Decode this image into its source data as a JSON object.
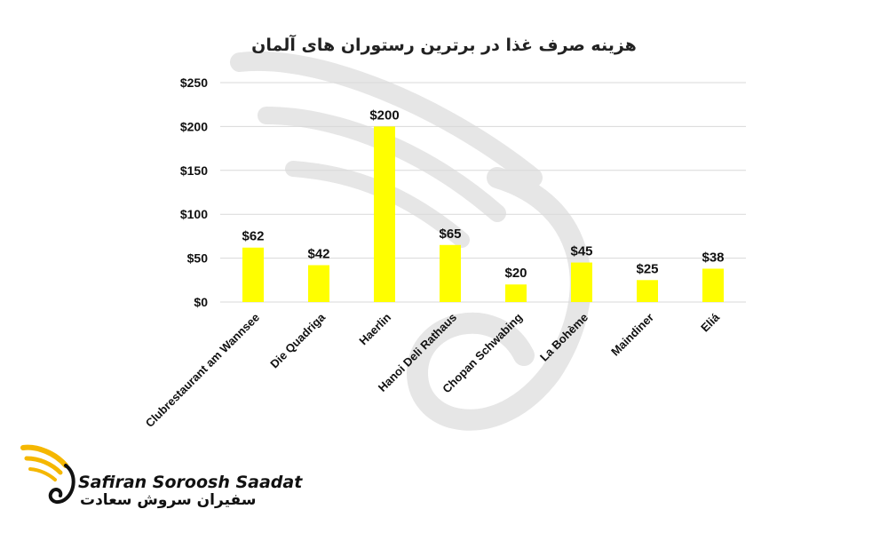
{
  "chart_data": {
    "type": "bar",
    "title": "هزینه صرف غذا در برترین رستوران های آلمان",
    "categories": [
      "Clubrestaurant am Wannsee",
      "Die Quadriga",
      "Haerlin",
      "Hanoi Deli Rathaus",
      "Chopan Schwabing",
      "La Bohème",
      "Maindiner",
      "Eliá"
    ],
    "values": [
      62,
      42,
      200,
      65,
      20,
      45,
      25,
      38
    ],
    "data_labels": [
      "$62",
      "$42",
      "$200",
      "$65",
      "$20",
      "$45",
      "$25",
      "$38"
    ],
    "y_ticks": [
      0,
      50,
      100,
      150,
      200,
      250
    ],
    "y_tick_labels": [
      "$0",
      "$50",
      "$100",
      "$150",
      "$200",
      "$250"
    ],
    "ylim": [
      0,
      250
    ],
    "xlabel": "",
    "ylabel": "",
    "grid": true,
    "legend": "none",
    "bar_color": "#ffff00",
    "grid_color": "#d9d9d9"
  },
  "logo": {
    "text_en": "Safiran Soroosh Saadat",
    "text_fa": "سفیران سروش سعادت",
    "accent_color": "#f5b700"
  }
}
